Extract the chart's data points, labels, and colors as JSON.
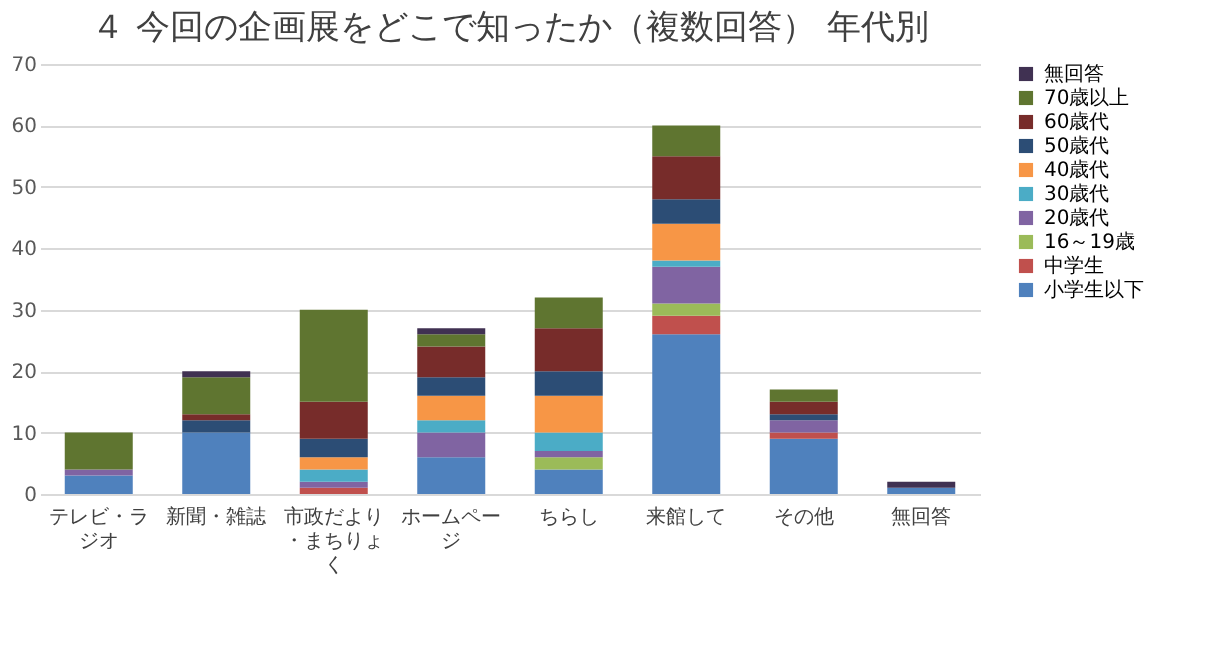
{
  "chart_data": {
    "type": "bar",
    "stacked": true,
    "title": "４ 今回の企画展をどこで知ったか（複数回答） 年代別",
    "categories": [
      "テレビ・ラジオ",
      "新聞・雑誌",
      "市政だより・まちりょく",
      "ホームページ",
      "ちらし",
      "来館して",
      "その他",
      "無回答"
    ],
    "series": [
      {
        "name": "小学生以下",
        "color": "#4f81bd",
        "values": [
          3,
          10,
          0,
          6,
          4,
          26,
          9,
          1
        ]
      },
      {
        "name": "中学生",
        "color": "#c0504d",
        "values": [
          0,
          0,
          1,
          0,
          0,
          3,
          1,
          0
        ]
      },
      {
        "name": "16～19歳",
        "color": "#9bbb59",
        "values": [
          0,
          0,
          0,
          0,
          2,
          2,
          0,
          0
        ]
      },
      {
        "name": "20歳代",
        "color": "#8064a2",
        "values": [
          1,
          0,
          1,
          4,
          1,
          6,
          2,
          0
        ]
      },
      {
        "name": "30歳代",
        "color": "#4bacc6",
        "values": [
          0,
          0,
          2,
          2,
          3,
          1,
          0,
          0
        ]
      },
      {
        "name": "40歳代",
        "color": "#f79646",
        "values": [
          0,
          0,
          2,
          4,
          6,
          6,
          0,
          0
        ]
      },
      {
        "name": "50歳代",
        "color": "#2c4d75",
        "values": [
          0,
          2,
          3,
          3,
          4,
          4,
          1,
          0
        ]
      },
      {
        "name": "60歳代",
        "color": "#772c2a",
        "values": [
          0,
          1,
          6,
          5,
          7,
          7,
          2,
          0
        ]
      },
      {
        "name": "70歳以上",
        "color": "#5f7530",
        "values": [
          6,
          6,
          15,
          2,
          5,
          5,
          2,
          0
        ]
      },
      {
        "name": "無回答",
        "color": "#403152",
        "values": [
          0,
          1,
          0,
          1,
          0,
          0,
          0,
          1
        ]
      }
    ],
    "ylim": [
      0,
      70
    ],
    "yticks": [
      0,
      10,
      20,
      30,
      40,
      50,
      60,
      70
    ],
    "grid": "y",
    "legend": "right"
  }
}
